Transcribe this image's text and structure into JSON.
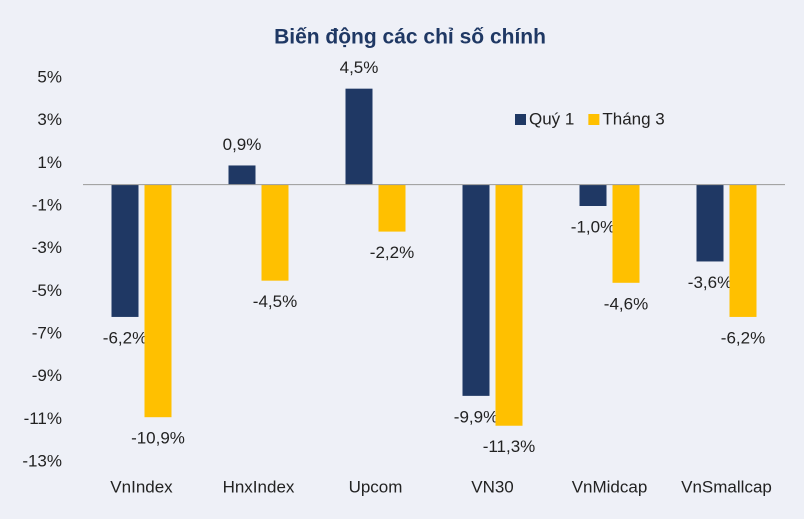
{
  "chart_data": {
    "type": "bar",
    "title": "Biến động các chỉ số chính",
    "categories": [
      "VnIndex",
      "HnxIndex",
      "Upcom",
      "VN30",
      "VnMidcap",
      "VnSmallcap"
    ],
    "series": [
      {
        "name": "Quý 1",
        "color": "#1f3864",
        "values": [
          -6.2,
          0.9,
          4.5,
          -9.9,
          -1.0,
          -3.6
        ],
        "value_labels": [
          "-6,2%",
          "0,9%",
          "4,5%",
          "-9,9%",
          "-1,0%",
          "-3,6%"
        ]
      },
      {
        "name": "Tháng 3",
        "color": "#ffc000",
        "values": [
          -10.9,
          -4.5,
          -2.2,
          -11.3,
          -4.6,
          -6.2
        ],
        "value_labels": [
          "-10,9%",
          "-4,5%",
          "-2,2%",
          "-11,3%",
          "-4,6%",
          "-6,2%"
        ]
      }
    ],
    "ylim": [
      -13,
      5
    ],
    "yticks": [
      {
        "value": 5,
        "label": "5%"
      },
      {
        "value": 3,
        "label": "3%"
      },
      {
        "value": 1,
        "label": "1%"
      },
      {
        "value": -1,
        "label": "-1%"
      },
      {
        "value": -3,
        "label": "-3%"
      },
      {
        "value": -5,
        "label": "-5%"
      },
      {
        "value": -7,
        "label": "-7%"
      },
      {
        "value": -9,
        "label": "-9%"
      },
      {
        "value": -11,
        "label": "-11%"
      },
      {
        "value": -13,
        "label": "-13%"
      }
    ],
    "grid": false,
    "legend": "top-right"
  }
}
